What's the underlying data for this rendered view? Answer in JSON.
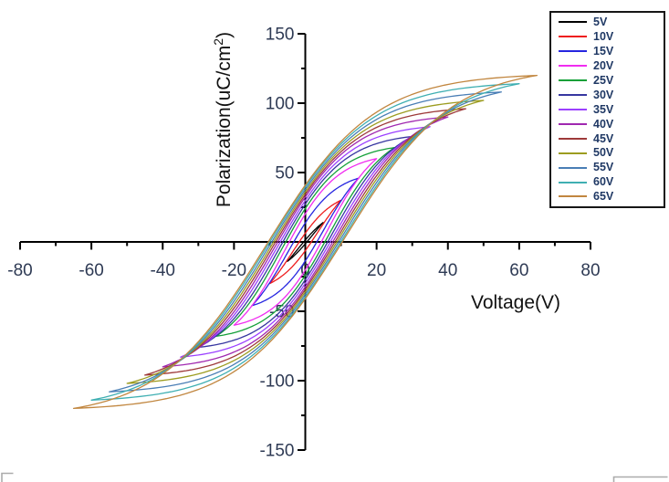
{
  "chart_data": {
    "type": "line",
    "description": "Ferroelectric polarization-voltage hysteresis loops measured at drive amplitudes from 5 V to 65 V",
    "title": "",
    "xlabel": "Voltage(V)",
    "ylabel": {
      "pre": "Polarization(uC/cm",
      "sup": "2",
      "post": ")"
    },
    "grid": false,
    "legend_position": "top-right",
    "x_axis": {
      "min": -80,
      "max": 80,
      "major_step": 20,
      "minor_step": 10,
      "tick_labels": [
        -80,
        -60,
        -40,
        -20,
        0,
        20,
        40,
        60,
        80
      ]
    },
    "y_axis": {
      "min": -150,
      "max": 150,
      "major_step": 50,
      "minor_step": 25,
      "tick_labels": [
        150,
        100,
        50,
        -50,
        -100,
        -150
      ]
    },
    "series": [
      {
        "name": "5V",
        "color": "#000000",
        "v_amplitude": 5,
        "p_max": 14,
        "v_coercive": 2.0
      },
      {
        "name": "10V",
        "color": "#ee1c1c",
        "v_amplitude": 10,
        "p_max": 30,
        "v_coercive": 3.5
      },
      {
        "name": "15V",
        "color": "#2626e0",
        "v_amplitude": 15,
        "p_max": 46,
        "v_coercive": 5.0
      },
      {
        "name": "20V",
        "color": "#f02cf0",
        "v_amplitude": 20,
        "p_max": 60,
        "v_coercive": 6.0
      },
      {
        "name": "25V",
        "color": "#14a038",
        "v_amplitude": 25,
        "p_max": 68,
        "v_coercive": 6.8
      },
      {
        "name": "30V",
        "color": "#3737a0",
        "v_amplitude": 30,
        "p_max": 76,
        "v_coercive": 7.4
      },
      {
        "name": "35V",
        "color": "#9b40ff",
        "v_amplitude": 35,
        "p_max": 83,
        "v_coercive": 8.0
      },
      {
        "name": "40V",
        "color": "#a028b0",
        "v_amplitude": 40,
        "p_max": 90,
        "v_coercive": 8.6
      },
      {
        "name": "45V",
        "color": "#9e3a3a",
        "v_amplitude": 45,
        "p_max": 96,
        "v_coercive": 9.1
      },
      {
        "name": "50V",
        "color": "#9c9c20",
        "v_amplitude": 50,
        "p_max": 102,
        "v_coercive": 9.6
      },
      {
        "name": "55V",
        "color": "#4a7eb5",
        "v_amplitude": 55,
        "p_max": 108,
        "v_coercive": 10.1
      },
      {
        "name": "60V",
        "color": "#3fafb2",
        "v_amplitude": 60,
        "p_max": 114,
        "v_coercive": 10.6
      },
      {
        "name": "65V",
        "color": "#c1863f",
        "v_amplitude": 65,
        "p_max": 120,
        "v_coercive": 11.0
      }
    ]
  },
  "colors": {
    "axis": "#000000",
    "tick_label": "#2e3a54",
    "legend_text": "#1f3864",
    "background": "#ffffff",
    "crop_mark": "#ababab"
  }
}
